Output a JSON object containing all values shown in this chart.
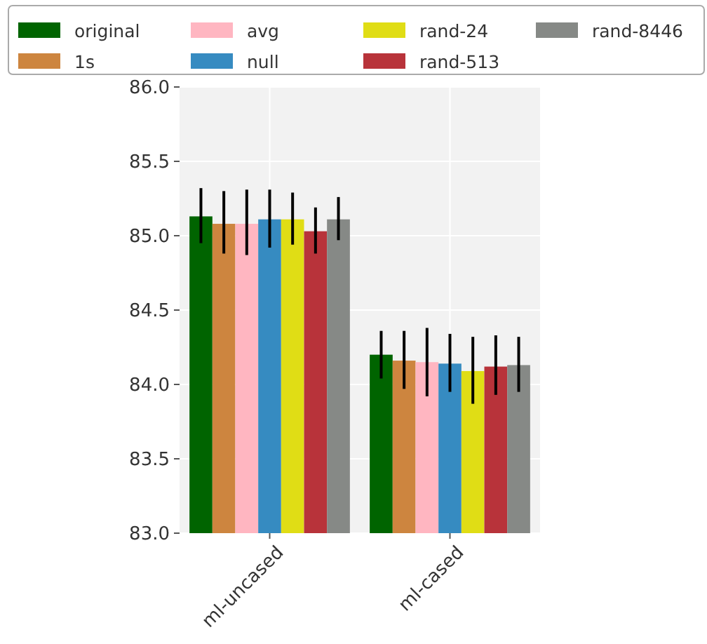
{
  "chart_data": {
    "type": "bar",
    "categories": [
      "ml-uncased",
      "ml-cased"
    ],
    "series": [
      {
        "name": "original",
        "color": "#006400",
        "values": [
          85.13,
          84.2
        ],
        "errors": [
          [
            84.95,
            85.32
          ],
          [
            84.04,
            84.36
          ]
        ]
      },
      {
        "name": "1s",
        "color": "#cd853f",
        "values": [
          85.08,
          84.16
        ],
        "errors": [
          [
            84.88,
            85.3
          ],
          [
            83.97,
            84.36
          ]
        ]
      },
      {
        "name": "avg",
        "color": "#ffb6c1",
        "values": [
          85.08,
          84.15
        ],
        "errors": [
          [
            84.87,
            85.31
          ],
          [
            83.92,
            84.38
          ]
        ]
      },
      {
        "name": "null",
        "color": "#368bc1",
        "values": [
          85.11,
          84.14
        ],
        "errors": [
          [
            84.92,
            85.31
          ],
          [
            83.95,
            84.34
          ]
        ]
      },
      {
        "name": "rand-24",
        "color": "#e0dd15",
        "values": [
          85.11,
          84.09
        ],
        "errors": [
          [
            84.94,
            85.29
          ],
          [
            83.87,
            84.32
          ]
        ]
      },
      {
        "name": "rand-513",
        "color": "#b8333a",
        "values": [
          85.03,
          84.12
        ],
        "errors": [
          [
            84.88,
            85.19
          ],
          [
            83.93,
            84.33
          ]
        ]
      },
      {
        "name": "rand-8446",
        "color": "#868986",
        "values": [
          85.11,
          84.13
        ],
        "errors": [
          [
            84.97,
            85.26
          ],
          [
            83.95,
            84.32
          ]
        ]
      }
    ],
    "ylim": [
      83,
      86
    ],
    "yticks": [
      {
        "value": 83,
        "label": "83.0"
      },
      {
        "value": 83.5,
        "label": "83.5"
      },
      {
        "value": 84,
        "label": "84.0"
      },
      {
        "value": 84.5,
        "label": "84.5"
      },
      {
        "value": 85,
        "label": "85.0"
      },
      {
        "value": 85.5,
        "label": "85.5"
      },
      {
        "value": 86,
        "label": "86.0"
      }
    ],
    "grid": true,
    "legend": "top"
  }
}
